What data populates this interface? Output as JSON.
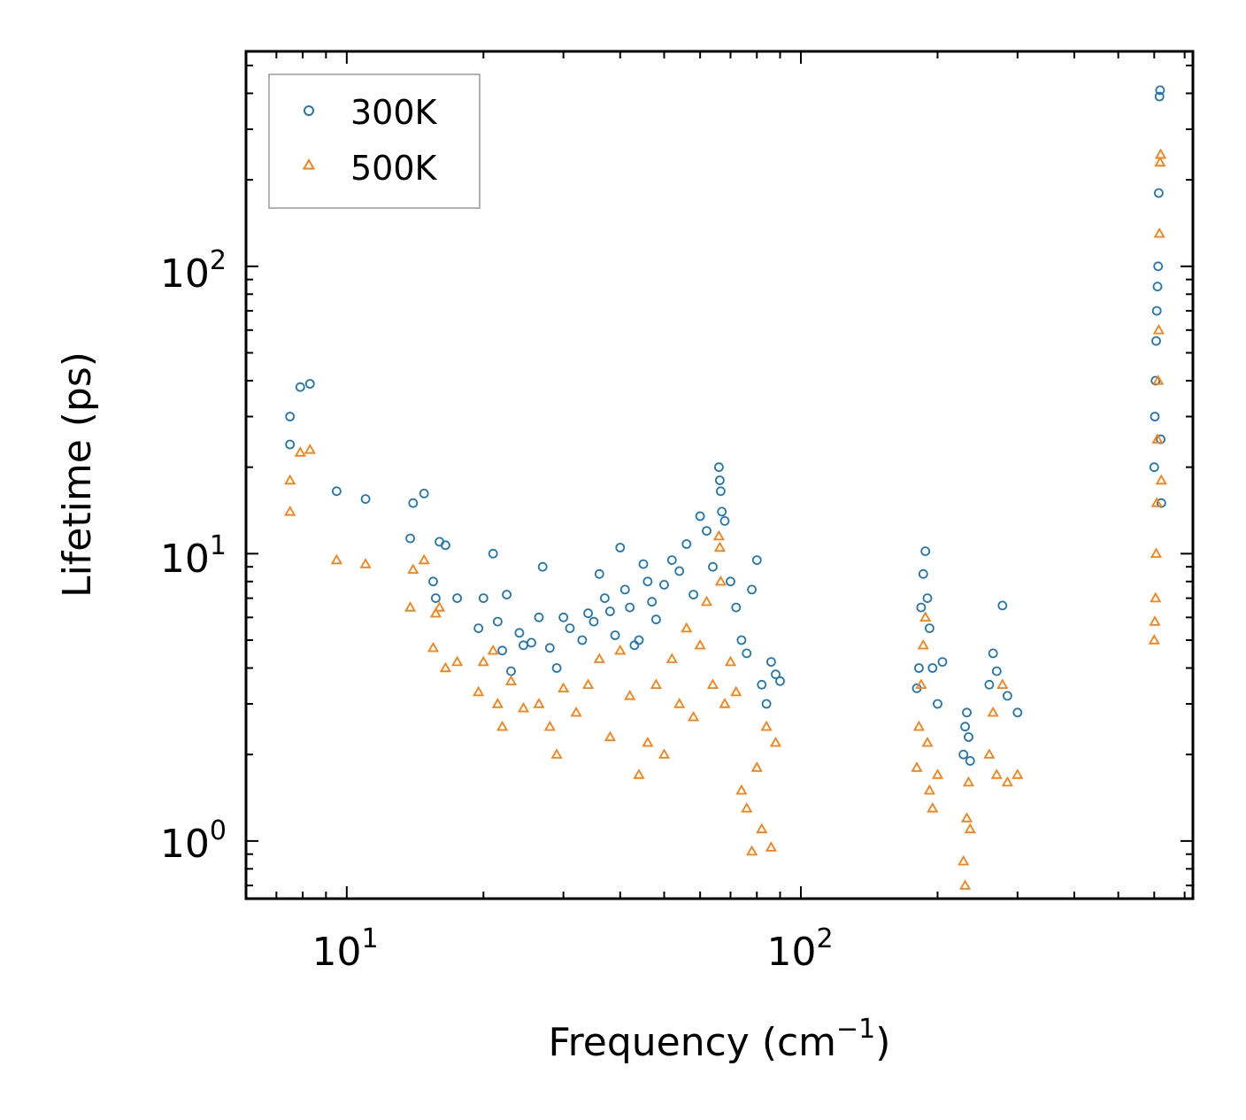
{
  "chart_data": {
    "type": "scatter",
    "xscale": "log",
    "yscale": "log",
    "xlim": [
      6.0,
      730.0
    ],
    "ylim": [
      0.63,
      560.0
    ],
    "xlabel": "Frequency (cm",
    "xlabel_sup": "−1",
    "xlabel_end": ")",
    "ylabel": "Lifetime (ps)",
    "xticks": [
      {
        "base": "10",
        "exp": "1",
        "value": 10
      },
      {
        "base": "10",
        "exp": "2",
        "value": 100
      }
    ],
    "yticks": [
      {
        "base": "10",
        "exp": "0",
        "value": 1
      },
      {
        "base": "10",
        "exp": "1",
        "value": 10
      },
      {
        "base": "10",
        "exp": "2",
        "value": 100
      }
    ],
    "legend": {
      "position": "top-left"
    },
    "series": [
      {
        "name": "300K",
        "marker": "circle",
        "color": "#1f77b4",
        "points": [
          [
            7.5,
            30.0
          ],
          [
            7.5,
            24.0
          ],
          [
            7.9,
            38.0
          ],
          [
            8.3,
            39.0
          ],
          [
            9.5,
            16.5
          ],
          [
            11.0,
            15.5
          ],
          [
            13.8,
            11.3
          ],
          [
            14.0,
            15.0
          ],
          [
            14.8,
            16.2
          ],
          [
            15.5,
            8.0
          ],
          [
            15.7,
            7.0
          ],
          [
            16.0,
            11.0
          ],
          [
            16.5,
            10.7
          ],
          [
            17.5,
            7.0
          ],
          [
            19.5,
            5.5
          ],
          [
            20.0,
            7.0
          ],
          [
            21.0,
            10.0
          ],
          [
            21.5,
            5.8
          ],
          [
            22.0,
            4.6
          ],
          [
            22.5,
            7.2
          ],
          [
            23.0,
            3.9
          ],
          [
            24.0,
            5.3
          ],
          [
            24.5,
            4.8
          ],
          [
            25.5,
            4.9
          ],
          [
            26.5,
            6.0
          ],
          [
            27.0,
            9.0
          ],
          [
            28.0,
            4.7
          ],
          [
            29.0,
            4.0
          ],
          [
            30.0,
            6.0
          ],
          [
            31.0,
            5.5
          ],
          [
            33.0,
            5.0
          ],
          [
            34.0,
            6.2
          ],
          [
            35.0,
            5.8
          ],
          [
            36.0,
            8.5
          ],
          [
            37.0,
            7.0
          ],
          [
            38.0,
            6.3
          ],
          [
            39.0,
            5.2
          ],
          [
            40.0,
            10.5
          ],
          [
            41.0,
            7.5
          ],
          [
            42.0,
            6.5
          ],
          [
            43.0,
            4.8
          ],
          [
            44.0,
            5.0
          ],
          [
            45.0,
            9.2
          ],
          [
            46.0,
            8.0
          ],
          [
            47.0,
            6.8
          ],
          [
            48.0,
            5.9
          ],
          [
            50.0,
            7.8
          ],
          [
            52.0,
            9.5
          ],
          [
            54.0,
            8.7
          ],
          [
            56.0,
            10.8
          ],
          [
            58.0,
            7.2
          ],
          [
            60.0,
            13.5
          ],
          [
            62.0,
            12.0
          ],
          [
            64.0,
            9.0
          ],
          [
            66.0,
            20.0
          ],
          [
            66.3,
            18.0
          ],
          [
            66.6,
            16.5
          ],
          [
            67.0,
            14.0
          ],
          [
            68.0,
            13.0
          ],
          [
            70.0,
            8.0
          ],
          [
            72.0,
            6.5
          ],
          [
            74.0,
            5.0
          ],
          [
            76.0,
            4.5
          ],
          [
            78.0,
            7.5
          ],
          [
            80.0,
            9.5
          ],
          [
            82.0,
            3.5
          ],
          [
            84.0,
            3.0
          ],
          [
            86.0,
            4.2
          ],
          [
            88.0,
            3.8
          ],
          [
            90.0,
            3.6
          ],
          [
            180.0,
            3.4
          ],
          [
            182.0,
            4.0
          ],
          [
            184.0,
            6.5
          ],
          [
            186.0,
            8.5
          ],
          [
            188.0,
            10.2
          ],
          [
            190.0,
            7.0
          ],
          [
            192.0,
            5.5
          ],
          [
            195.0,
            4.0
          ],
          [
            200.0,
            3.0
          ],
          [
            205.0,
            4.2
          ],
          [
            228.0,
            2.0
          ],
          [
            230.0,
            2.5
          ],
          [
            232.0,
            2.8
          ],
          [
            234.0,
            2.3
          ],
          [
            236.0,
            1.9
          ],
          [
            260.0,
            3.5
          ],
          [
            265.0,
            4.5
          ],
          [
            270.0,
            3.9
          ],
          [
            278.0,
            6.6
          ],
          [
            285.0,
            3.2
          ],
          [
            300.0,
            2.8
          ],
          [
            600.0,
            20.0
          ],
          [
            602.0,
            30.0
          ],
          [
            604.0,
            40.0
          ],
          [
            606.0,
            55.0
          ],
          [
            608.0,
            70.0
          ],
          [
            610.0,
            85.0
          ],
          [
            612.0,
            100.0
          ],
          [
            614.0,
            180.0
          ],
          [
            616.0,
            390.0
          ],
          [
            618.0,
            410.0
          ],
          [
            620.0,
            25.0
          ],
          [
            622.0,
            15.0
          ]
        ]
      },
      {
        "name": "500K",
        "marker": "triangle",
        "color": "#ff7f0e",
        "points": [
          [
            7.5,
            18.0
          ],
          [
            7.5,
            14.0
          ],
          [
            7.9,
            22.5
          ],
          [
            8.3,
            23.0
          ],
          [
            9.5,
            9.5
          ],
          [
            11.0,
            9.2
          ],
          [
            13.8,
            6.5
          ],
          [
            14.0,
            8.8
          ],
          [
            14.8,
            9.5
          ],
          [
            15.5,
            4.7
          ],
          [
            15.7,
            6.2
          ],
          [
            16.0,
            6.5
          ],
          [
            16.5,
            4.0
          ],
          [
            17.5,
            4.2
          ],
          [
            19.5,
            3.3
          ],
          [
            20.0,
            4.2
          ],
          [
            21.0,
            4.6
          ],
          [
            21.5,
            3.0
          ],
          [
            22.0,
            2.5
          ],
          [
            23.0,
            3.6
          ],
          [
            24.5,
            2.9
          ],
          [
            26.5,
            3.0
          ],
          [
            28.0,
            2.5
          ],
          [
            29.0,
            2.0
          ],
          [
            30.0,
            3.4
          ],
          [
            32.0,
            2.8
          ],
          [
            34.0,
            3.5
          ],
          [
            36.0,
            4.3
          ],
          [
            38.0,
            2.3
          ],
          [
            40.0,
            4.6
          ],
          [
            42.0,
            3.2
          ],
          [
            44.0,
            1.7
          ],
          [
            46.0,
            2.2
          ],
          [
            48.0,
            3.5
          ],
          [
            50.0,
            2.0
          ],
          [
            52.0,
            4.3
          ],
          [
            54.0,
            3.0
          ],
          [
            56.0,
            5.5
          ],
          [
            58.0,
            2.7
          ],
          [
            60.0,
            4.8
          ],
          [
            62.0,
            6.8
          ],
          [
            64.0,
            3.5
          ],
          [
            66.0,
            11.5
          ],
          [
            66.3,
            10.5
          ],
          [
            66.6,
            8.0
          ],
          [
            68.0,
            3.0
          ],
          [
            70.0,
            4.2
          ],
          [
            72.0,
            3.3
          ],
          [
            74.0,
            1.5
          ],
          [
            76.0,
            1.3
          ],
          [
            78.0,
            0.92
          ],
          [
            80.0,
            1.8
          ],
          [
            82.0,
            1.1
          ],
          [
            84.0,
            2.5
          ],
          [
            86.0,
            0.95
          ],
          [
            88.0,
            2.2
          ],
          [
            180.0,
            1.8
          ],
          [
            182.0,
            2.5
          ],
          [
            184.0,
            3.5
          ],
          [
            186.0,
            4.8
          ],
          [
            188.0,
            6.0
          ],
          [
            190.0,
            2.2
          ],
          [
            192.0,
            1.5
          ],
          [
            195.0,
            1.3
          ],
          [
            200.0,
            1.7
          ],
          [
            228.0,
            0.85
          ],
          [
            230.0,
            0.7
          ],
          [
            232.0,
            1.2
          ],
          [
            234.0,
            1.6
          ],
          [
            236.0,
            1.1
          ],
          [
            260.0,
            2.0
          ],
          [
            265.0,
            2.8
          ],
          [
            270.0,
            1.7
          ],
          [
            278.0,
            3.5
          ],
          [
            285.0,
            1.6
          ],
          [
            300.0,
            1.7
          ],
          [
            600.0,
            5.0
          ],
          [
            602.0,
            5.8
          ],
          [
            604.0,
            7.0
          ],
          [
            606.0,
            10.0
          ],
          [
            608.0,
            15.0
          ],
          [
            610.0,
            25.0
          ],
          [
            612.0,
            40.0
          ],
          [
            614.0,
            60.0
          ],
          [
            616.0,
            130.0
          ],
          [
            618.0,
            230.0
          ],
          [
            620.0,
            245.0
          ],
          [
            622.0,
            18.0
          ]
        ]
      }
    ]
  }
}
